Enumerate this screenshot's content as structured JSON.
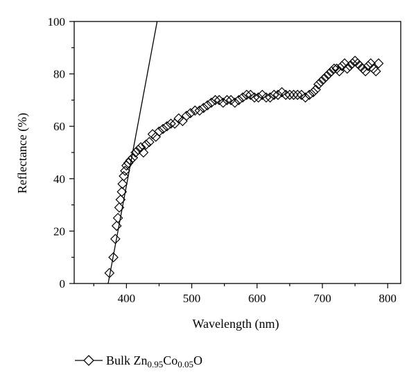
{
  "chart_data": {
    "type": "scatter",
    "xlabel": "Wavelength (nm)",
    "ylabel": "Reflectance (%)",
    "xlim": [
      320,
      820
    ],
    "ylim": [
      0,
      100
    ],
    "xticks": [
      400,
      500,
      600,
      700,
      800
    ],
    "yticks": [
      0,
      20,
      40,
      60,
      80,
      100
    ],
    "grid": false,
    "legend": {
      "placement": "bottom-left",
      "prefix": "Bulk Zn",
      "sub1": "0.95",
      "mid": "Co",
      "sub2": "0.05",
      "suffix": "O"
    },
    "tangent_line": {
      "x": [
        372,
        447
      ],
      "y": [
        0,
        100
      ]
    },
    "series": [
      {
        "marker": "diamond",
        "x": [
          374,
          380,
          383,
          385,
          387,
          389,
          391,
          393,
          394,
          396,
          398,
          400,
          403,
          406,
          410,
          414,
          418,
          422,
          426,
          430,
          435,
          440,
          445,
          450,
          456,
          462,
          468,
          474,
          480,
          486,
          492,
          498,
          505,
          512,
          518,
          524,
          530,
          536,
          542,
          548,
          554,
          560,
          566,
          572,
          578,
          584,
          590,
          596,
          602,
          608,
          614,
          620,
          626,
          632,
          638,
          644,
          650,
          656,
          662,
          668,
          674,
          680,
          686,
          690,
          694,
          698,
          702,
          706,
          710,
          714,
          718,
          722,
          726,
          730,
          734,
          738,
          742,
          746,
          750,
          754,
          758,
          762,
          766,
          770,
          774,
          778,
          782,
          786
        ],
        "y": [
          4,
          10,
          17,
          22,
          25,
          29,
          32,
          35,
          38,
          41,
          43,
          45,
          46,
          47,
          48,
          50,
          51,
          52,
          50,
          53,
          54,
          57,
          56,
          58,
          59,
          60,
          61,
          61,
          63,
          62,
          64,
          65,
          66,
          66,
          67,
          68,
          69,
          70,
          70,
          69,
          70,
          70,
          69,
          70,
          71,
          72,
          72,
          71,
          71,
          72,
          71,
          71,
          72,
          72,
          73,
          72,
          72,
          72,
          72,
          72,
          71,
          72,
          73,
          74,
          76,
          77,
          78,
          79,
          80,
          81,
          82,
          82,
          81,
          83,
          84,
          82,
          83,
          84,
          85,
          84,
          83,
          82,
          81,
          83,
          84,
          82,
          81,
          84
        ]
      }
    ]
  }
}
